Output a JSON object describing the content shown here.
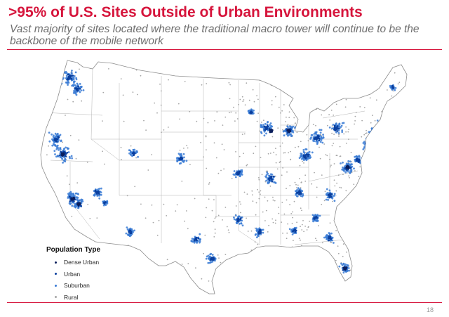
{
  "slide": {
    "title": ">95% of U.S. Sites Outside of Urban Environments",
    "subtitle": "Vast majority of sites located where the traditional macro tower will continue to be the backbone of the mobile network",
    "page_number": "18"
  },
  "legend": {
    "title": "Population Type",
    "items": [
      {
        "label": "Dense Urban",
        "color": "#0b1f5c"
      },
      {
        "label": "Urban",
        "color": "#0a3f9e"
      },
      {
        "label": "Suburban",
        "color": "#3a7bd5"
      },
      {
        "label": "Rural",
        "color": "#a6a6a6"
      }
    ]
  },
  "colors": {
    "accent": "#d6153c",
    "land": "#ffffff",
    "border": "#8c8c8c",
    "rural": "#a6a6a6",
    "suburban": "#3a7bd5",
    "urban": "#0a3f9e",
    "dense_urban": "#0b1f5c"
  }
}
